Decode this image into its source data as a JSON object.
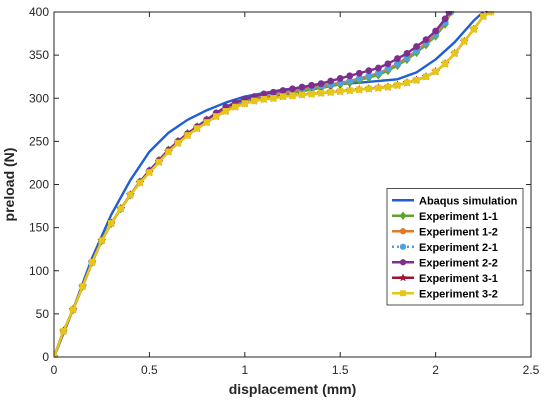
{
  "chart_data": {
    "type": "line",
    "xlabel": "displacement (mm)",
    "ylabel": "preload (N)",
    "xlim": [
      0,
      2.5
    ],
    "ylim": [
      0,
      400
    ],
    "xticks": [
      0,
      0.5,
      1,
      1.5,
      2,
      2.5
    ],
    "yticks": [
      0,
      50,
      100,
      150,
      200,
      250,
      300,
      350,
      400
    ],
    "xtick_labels": [
      "0",
      "0.5",
      "1",
      "1.5",
      "2",
      "2.5"
    ],
    "ytick_labels": [
      "0",
      "50",
      "100",
      "150",
      "200",
      "250",
      "300",
      "350",
      "400"
    ],
    "grid": false,
    "legend_position": "lower-right",
    "series": [
      {
        "name": "Abaqus simulation",
        "color": "#1f5fd1",
        "marker": "none",
        "line_style": "solid",
        "x": [
          0,
          0.1,
          0.2,
          0.3,
          0.4,
          0.5,
          0.6,
          0.7,
          0.8,
          0.9,
          1.0,
          1.2,
          1.4,
          1.6,
          1.8,
          1.9,
          2.0,
          2.1,
          2.2,
          2.25
        ],
        "y": [
          0,
          55,
          115,
          165,
          205,
          238,
          260,
          275,
          286,
          295,
          302,
          310,
          315,
          318,
          322,
          330,
          345,
          365,
          390,
          400
        ]
      },
      {
        "name": "Experiment 1-1",
        "color": "#5fa52d",
        "marker": "diamond",
        "line_style": "solid",
        "x": [
          0,
          0.05,
          0.1,
          0.15,
          0.2,
          0.25,
          0.3,
          0.35,
          0.4,
          0.45,
          0.5,
          0.55,
          0.6,
          0.65,
          0.7,
          0.75,
          0.8,
          0.85,
          0.9,
          0.95,
          1.0,
          1.05,
          1.1,
          1.15,
          1.2,
          1.25,
          1.3,
          1.35,
          1.4,
          1.45,
          1.5,
          1.55,
          1.6,
          1.65,
          1.7,
          1.75,
          1.8,
          1.85,
          1.9,
          1.95,
          2.0,
          2.05,
          2.08
        ],
        "y": [
          0,
          30,
          55,
          82,
          110,
          135,
          155,
          172,
          188,
          203,
          216,
          228,
          240,
          250,
          259,
          267,
          275,
          282,
          288,
          292,
          295,
          298,
          300,
          302,
          304,
          306,
          308,
          310,
          312,
          314,
          316,
          318,
          321,
          324,
          327,
          332,
          338,
          345,
          353,
          362,
          372,
          386,
          400
        ]
      },
      {
        "name": "Experiment 1-2",
        "color": "#e07b25",
        "marker": "circle",
        "line_style": "solid",
        "x": [
          0,
          0.05,
          0.1,
          0.15,
          0.2,
          0.25,
          0.3,
          0.35,
          0.4,
          0.45,
          0.5,
          0.55,
          0.6,
          0.65,
          0.7,
          0.75,
          0.8,
          0.85,
          0.9,
          0.95,
          1.0,
          1.05,
          1.1,
          1.15,
          1.2,
          1.25,
          1.3,
          1.35,
          1.4,
          1.45,
          1.5,
          1.55,
          1.6,
          1.65,
          1.7,
          1.75,
          1.8,
          1.85,
          1.9,
          1.95,
          2.0,
          2.05,
          2.08
        ],
        "y": [
          0,
          30,
          55,
          82,
          110,
          135,
          155,
          172,
          188,
          203,
          216,
          228,
          240,
          250,
          259,
          267,
          275,
          282,
          288,
          293,
          297,
          300,
          302,
          304,
          306,
          308,
          310,
          312,
          314,
          316,
          318,
          320,
          323,
          326,
          329,
          334,
          340,
          347,
          355,
          364,
          374,
          388,
          400
        ]
      },
      {
        "name": "Experiment 2-1",
        "color": "#4da3e0",
        "marker": "circle",
        "line_style": "dotted",
        "x": [
          0,
          0.05,
          0.1,
          0.15,
          0.2,
          0.25,
          0.3,
          0.35,
          0.4,
          0.45,
          0.5,
          0.55,
          0.6,
          0.65,
          0.7,
          0.75,
          0.8,
          0.85,
          0.9,
          0.95,
          1.0,
          1.05,
          1.1,
          1.15,
          1.2,
          1.25,
          1.3,
          1.35,
          1.4,
          1.45,
          1.5,
          1.55,
          1.6,
          1.65,
          1.7,
          1.75,
          1.8,
          1.85,
          1.9,
          1.95,
          2.0,
          2.05,
          2.08
        ],
        "y": [
          0,
          30,
          55,
          82,
          110,
          135,
          155,
          172,
          188,
          203,
          216,
          228,
          240,
          250,
          259,
          267,
          275,
          282,
          288,
          293,
          297,
          300,
          302,
          304,
          306,
          308,
          310,
          312,
          314,
          316,
          318,
          320,
          323,
          326,
          329,
          334,
          340,
          347,
          355,
          364,
          374,
          388,
          400
        ]
      },
      {
        "name": "Experiment 2-2",
        "color": "#7e2f8e",
        "marker": "circle",
        "line_style": "solid",
        "x": [
          0,
          0.05,
          0.1,
          0.15,
          0.2,
          0.25,
          0.3,
          0.35,
          0.4,
          0.45,
          0.5,
          0.55,
          0.6,
          0.65,
          0.7,
          0.75,
          0.8,
          0.85,
          0.9,
          0.95,
          1.0,
          1.05,
          1.1,
          1.15,
          1.2,
          1.25,
          1.3,
          1.35,
          1.4,
          1.45,
          1.5,
          1.55,
          1.6,
          1.65,
          1.7,
          1.75,
          1.8,
          1.85,
          1.9,
          1.95,
          2.0,
          2.05,
          2.07
        ],
        "y": [
          0,
          30,
          55,
          82,
          110,
          135,
          155,
          172,
          188,
          203,
          216,
          228,
          240,
          250,
          259,
          267,
          275,
          283,
          290,
          295,
          299,
          302,
          305,
          307,
          309,
          311,
          313,
          315,
          317,
          320,
          323,
          326,
          329,
          332,
          335,
          340,
          346,
          352,
          360,
          368,
          378,
          392,
          400
        ]
      },
      {
        "name": "Experiment 3-1",
        "color": "#a2142f",
        "marker": "star",
        "line_style": "solid",
        "x": [
          0,
          0.05,
          0.1,
          0.15,
          0.2,
          0.25,
          0.3,
          0.35,
          0.4,
          0.45,
          0.5,
          0.55,
          0.6,
          0.65,
          0.7,
          0.75,
          0.8,
          0.85,
          0.9,
          0.95,
          1.0,
          1.05,
          1.1,
          1.15,
          1.2,
          1.25,
          1.3,
          1.35,
          1.4,
          1.45,
          1.5,
          1.55,
          1.6,
          1.65,
          1.7,
          1.75,
          1.8,
          1.85,
          1.9,
          1.95,
          2.0,
          2.05,
          2.1,
          2.15,
          2.2,
          2.25,
          2.28
        ],
        "y": [
          0,
          30,
          55,
          82,
          110,
          135,
          155,
          172,
          188,
          202,
          214,
          226,
          238,
          248,
          257,
          265,
          272,
          279,
          285,
          290,
          294,
          297,
          299,
          300,
          302,
          303,
          304,
          305,
          306,
          307,
          308,
          309,
          310,
          311,
          312,
          313,
          315,
          318,
          321,
          325,
          331,
          340,
          352,
          366,
          380,
          395,
          400
        ]
      },
      {
        "name": "Experiment 3-2",
        "color": "#e6c619",
        "marker": "square",
        "line_style": "solid",
        "x": [
          0,
          0.05,
          0.1,
          0.15,
          0.2,
          0.25,
          0.3,
          0.35,
          0.4,
          0.45,
          0.5,
          0.55,
          0.6,
          0.65,
          0.7,
          0.75,
          0.8,
          0.85,
          0.9,
          0.95,
          1.0,
          1.05,
          1.1,
          1.15,
          1.2,
          1.25,
          1.3,
          1.35,
          1.4,
          1.45,
          1.5,
          1.55,
          1.6,
          1.65,
          1.7,
          1.75,
          1.8,
          1.85,
          1.9,
          1.95,
          2.0,
          2.05,
          2.1,
          2.15,
          2.2,
          2.25,
          2.29
        ],
        "y": [
          0,
          30,
          55,
          82,
          110,
          135,
          155,
          172,
          188,
          202,
          214,
          226,
          238,
          248,
          257,
          265,
          272,
          279,
          285,
          290,
          294,
          297,
          299,
          300,
          302,
          303,
          304,
          305,
          306,
          307,
          308,
          309,
          310,
          311,
          312,
          313,
          315,
          318,
          321,
          325,
          331,
          340,
          352,
          366,
          380,
          395,
          400
        ]
      }
    ]
  }
}
